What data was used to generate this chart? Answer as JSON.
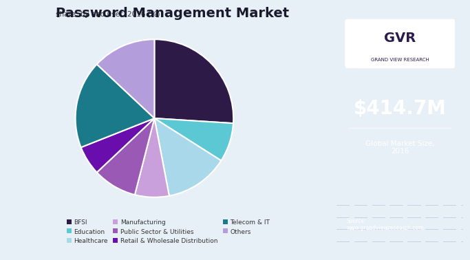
{
  "title": "Password Management Market",
  "subtitle": "share, by end user, 2016 (%)",
  "labels": [
    "BFSI",
    "Education",
    "Healthcare",
    "Manufacturing",
    "Public Sector & Utilities",
    "Retail & Wholesale Distribution",
    "Telecom & IT",
    "Others"
  ],
  "values": [
    26,
    8,
    13,
    7,
    9,
    6,
    18,
    13
  ],
  "colors": [
    "#2e1a47",
    "#5bc8d4",
    "#a8d8ea",
    "#c9a0dc",
    "#9b59b6",
    "#6a0dad",
    "#1a7a8a",
    "#b39ddb"
  ],
  "sidebar_bg": "#2d1b4e",
  "chart_bg": "#e8f0f7",
  "market_size": "$414.7M",
  "market_label": "Global Market Size,\n2016",
  "source_text": "Source:\nwww.grandviewresearch.com",
  "logo_text": "GRAND VIEW RESEARCH"
}
